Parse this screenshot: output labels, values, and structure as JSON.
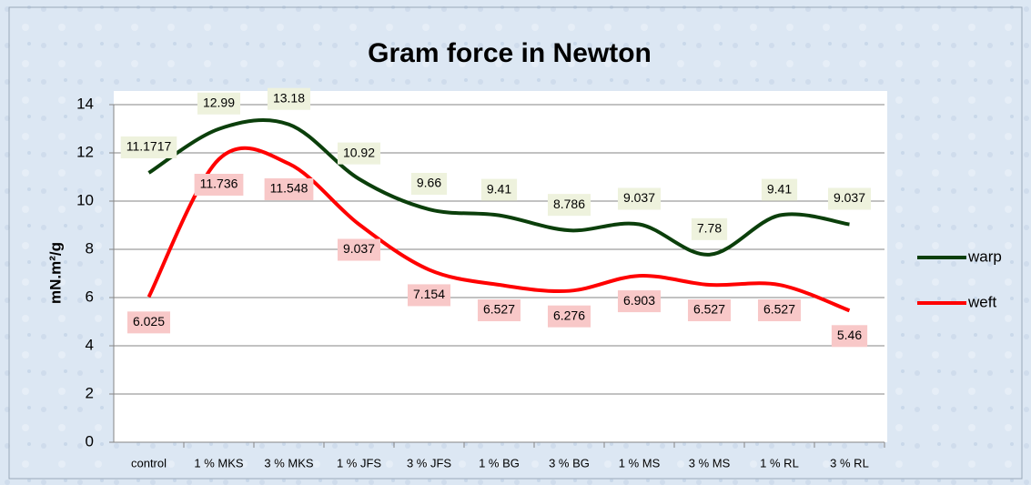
{
  "chart_data": {
    "type": "line",
    "title": "Gram force in Newton",
    "y_label": "mN.m²/g",
    "categories": [
      "control",
      "1 % MKS",
      "3 % MKS",
      "1 % JFS",
      "3 % JFS",
      "1 % BG",
      "3 % BG",
      "1 % MS",
      "3 % MS",
      "1 % RL",
      "3 % RL"
    ],
    "series": [
      {
        "name": "warp",
        "color": "#0b3f0b",
        "values": [
          11.1717,
          12.99,
          13.18,
          10.92,
          9.66,
          9.41,
          8.786,
          9.037,
          7.78,
          9.41,
          9.037
        ]
      },
      {
        "name": "weft",
        "color": "#ff0000",
        "values": [
          6.025,
          11.736,
          11.548,
          9.037,
          7.154,
          6.527,
          6.276,
          6.903,
          6.527,
          6.527,
          5.46
        ]
      }
    ],
    "ylim": [
      0,
      14
    ],
    "yticks": [
      0,
      2,
      4,
      6,
      8,
      10,
      12,
      14
    ],
    "grid": true,
    "legend": "right"
  }
}
